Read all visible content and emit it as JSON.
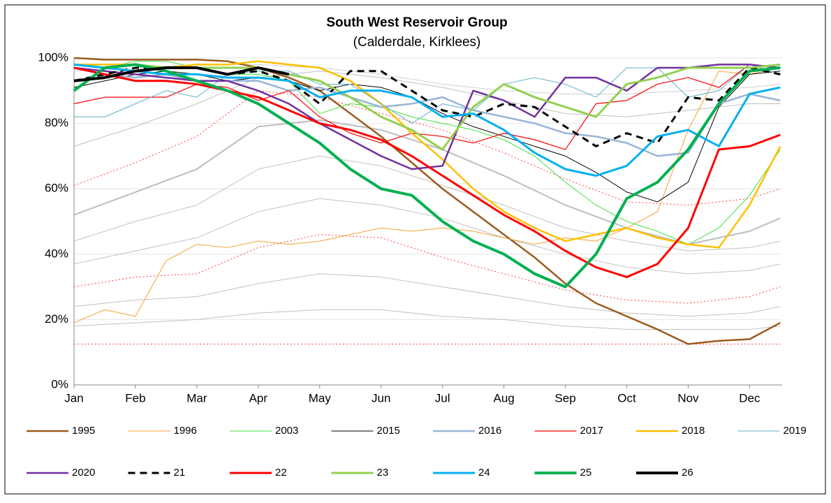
{
  "chart_data": {
    "type": "line",
    "title": "South West Reservoir Group",
    "subtitle": "(Calderdale, Kirklees)",
    "xlim": [
      0,
      11.53
    ],
    "xticks": [
      {
        "value": 0,
        "label": "Jan"
      },
      {
        "value": 1,
        "label": "Feb"
      },
      {
        "value": 2,
        "label": "Mar"
      },
      {
        "value": 3,
        "label": "Apr"
      },
      {
        "value": 4,
        "label": "May"
      },
      {
        "value": 5,
        "label": "Jun"
      },
      {
        "value": 6,
        "label": "Jul"
      },
      {
        "value": 7,
        "label": "Aug"
      },
      {
        "value": 8,
        "label": "Sep"
      },
      {
        "value": 9,
        "label": "Oct"
      },
      {
        "value": 10,
        "label": "Nov"
      },
      {
        "value": 11,
        "label": "Dec"
      }
    ],
    "ylim": [
      0,
      100
    ],
    "yticks": [
      {
        "value": 0,
        "label": "0%"
      },
      {
        "value": 20,
        "label": "20%"
      },
      {
        "value": 40,
        "label": "40%"
      },
      {
        "value": 60,
        "label": "60%"
      },
      {
        "value": 80,
        "label": "80%"
      },
      {
        "value": 100,
        "label": "100%"
      }
    ],
    "grid": true,
    "legend": "bottom",
    "x": [
      0,
      0.5,
      1,
      1.5,
      2,
      2.5,
      3,
      3.5,
      4,
      4.5,
      5,
      5.5,
      6,
      6.5,
      7,
      7.5,
      8,
      8.5,
      9,
      9.5,
      10,
      10.5,
      11,
      11.5
    ],
    "reference_x": [
      0,
      1,
      2,
      3,
      4,
      5,
      6,
      7,
      8,
      9,
      10,
      11,
      11.5
    ],
    "reference_lines": [
      {
        "color": "#d0d0d0",
        "width": 1,
        "values": [
          96,
          97,
          98,
          98,
          97,
          95,
          92,
          90,
          89,
          89,
          90,
          91,
          92
        ]
      },
      {
        "color": "#c0c0c0",
        "width": 1,
        "values": [
          73,
          79,
          86,
          94,
          96,
          94,
          91,
          87,
          83,
          82,
          84,
          86,
          86
        ]
      },
      {
        "color": "#bdbdbd",
        "width": 2,
        "values": [
          52,
          59,
          66,
          79,
          81,
          78,
          72,
          64,
          55,
          48,
          43,
          47,
          51
        ]
      },
      {
        "color": "#c0c0c0",
        "width": 1,
        "values": [
          44,
          50,
          55,
          66,
          70,
          67,
          61,
          55,
          48,
          44,
          41,
          42,
          44
        ]
      },
      {
        "color": "#c0c0c0",
        "width": 1,
        "values": [
          37,
          41,
          45,
          53,
          57,
          55,
          51,
          45,
          40,
          36,
          34,
          35,
          37
        ]
      },
      {
        "color": "#c0c0c0",
        "width": 1,
        "values": [
          24,
          26,
          27,
          31,
          34,
          33,
          30,
          27,
          24,
          22,
          21,
          22,
          24
        ]
      },
      {
        "color": "#c0c0c0",
        "width": 1,
        "values": [
          18,
          19,
          20,
          22,
          23,
          23,
          21,
          20,
          18,
          17,
          17,
          17,
          18
        ]
      },
      {
        "color": "#ff4040",
        "width": 1,
        "dash": true,
        "values": [
          61,
          68,
          76,
          90,
          88,
          83,
          78,
          71,
          63,
          56,
          55,
          57,
          60
        ]
      },
      {
        "color": "#ff4040",
        "width": 1,
        "dash": true,
        "values": [
          30,
          33,
          34,
          42,
          46,
          45,
          39,
          34,
          29,
          26,
          25,
          27,
          30
        ]
      },
      {
        "color": "#ff4040",
        "width": 1,
        "dash": true,
        "values": [
          12.5,
          12.5,
          12.5,
          12.5,
          12.5,
          12.5,
          12.5,
          12.5,
          12.5,
          12.5,
          12.5,
          12.5,
          12.5
        ]
      }
    ],
    "series": [
      {
        "name": "1995",
        "color": "#9c5a1e",
        "width": 2.5,
        "values": [
          100,
          99.5,
          99.5,
          99.5,
          99.5,
          99,
          97,
          94,
          90,
          83,
          76,
          68,
          60,
          53,
          46,
          39,
          31,
          25,
          21,
          17,
          12.5,
          13.5,
          14,
          19
        ]
      },
      {
        "name": "1996",
        "color": "#f5a030",
        "width": 1,
        "values": [
          19,
          23,
          21,
          38,
          43,
          42,
          44,
          43,
          44,
          46,
          48,
          47,
          48,
          47,
          45,
          43,
          45,
          44,
          48,
          53,
          78,
          96,
          95,
          97
        ]
      },
      {
        "name": "2003",
        "color": "#40e040",
        "width": 1,
        "values": [
          98,
          97,
          99,
          99,
          97,
          95,
          95,
          93,
          83,
          86,
          85,
          82,
          80,
          78,
          75,
          70,
          62,
          55,
          50,
          47,
          43,
          48,
          58,
          72
        ]
      },
      {
        "name": "2015",
        "color": "#000000",
        "width": 1,
        "values": [
          91,
          93,
          95,
          96,
          95,
          93,
          94,
          93,
          90,
          92,
          91,
          88,
          83,
          79,
          76,
          73,
          70,
          65,
          59,
          56,
          62,
          85,
          95,
          96
        ]
      },
      {
        "name": "2016",
        "color": "#9ab4d8",
        "width": 2.5,
        "values": [
          97,
          95,
          94,
          95,
          93,
          93,
          93,
          90,
          91,
          88,
          85,
          86,
          88,
          84,
          82,
          80,
          77,
          76,
          74,
          70,
          71,
          86,
          89,
          87
        ]
      },
      {
        "name": "2017",
        "color": "#ff0000",
        "width": 1.2,
        "values": [
          86,
          88,
          88,
          88,
          92,
          91,
          87,
          90,
          82,
          77,
          74,
          77,
          76,
          74,
          77,
          75,
          72,
          86,
          87,
          92,
          94,
          91,
          98,
          97
        ]
      },
      {
        "name": "2018",
        "color": "#ffc000",
        "width": 2.5,
        "values": [
          98,
          98,
          98,
          97,
          98,
          98,
          99,
          98,
          97,
          93,
          86,
          77,
          69,
          60,
          53,
          48,
          44,
          46,
          48,
          45,
          43,
          42,
          55,
          73
        ]
      },
      {
        "name": "2019",
        "color": "#5fb0c8",
        "width": 1,
        "values": [
          82,
          82,
          86,
          90,
          88,
          95,
          96,
          96,
          92,
          92,
          86,
          80,
          86,
          84,
          92,
          94,
          92,
          88,
          97,
          97,
          88,
          90,
          98,
          95
        ]
      },
      {
        "name": "2020",
        "color": "#7030a0",
        "width": 2.5,
        "values": [
          97,
          96,
          95,
          94,
          93,
          93,
          90,
          86,
          80,
          75,
          70,
          66,
          67,
          90,
          87,
          82,
          94,
          94,
          90,
          97,
          97,
          98,
          98,
          97
        ]
      },
      {
        "name": "21",
        "color": "#000000",
        "width": 3,
        "dash": true,
        "values": [
          93,
          95,
          97,
          97,
          97,
          95,
          96,
          93,
          86,
          96,
          96,
          90,
          84,
          82,
          86,
          85,
          79,
          73,
          77,
          74,
          88,
          87,
          97,
          95
        ]
      },
      {
        "name": "22",
        "color": "#ff0000",
        "width": 3,
        "values": [
          97,
          95,
          93,
          93,
          92,
          90,
          88,
          84,
          80,
          78,
          75,
          70,
          64,
          58,
          52,
          47,
          41,
          36,
          33,
          37,
          48,
          72,
          73,
          76.5
        ]
      },
      {
        "name": "23",
        "color": "#92d050",
        "width": 3,
        "values": [
          98,
          97,
          98,
          97,
          97,
          97,
          97,
          95,
          93,
          88,
          82,
          78,
          72,
          85,
          92,
          88,
          85,
          82,
          92,
          94,
          97,
          97,
          97,
          98
        ]
      },
      {
        "name": "24",
        "color": "#00b0f0",
        "width": 3,
        "values": [
          98,
          97,
          96,
          95,
          95,
          94,
          94,
          93,
          88,
          90,
          90,
          88,
          82,
          83,
          78,
          71,
          66,
          64,
          67,
          76,
          78,
          73,
          89,
          91
        ]
      },
      {
        "name": "25",
        "color": "#00b050",
        "width": 4,
        "values": [
          90,
          97,
          98,
          96,
          93,
          90,
          86,
          80,
          74,
          66,
          60,
          58,
          50,
          44,
          40,
          34,
          30,
          40,
          57,
          62,
          72,
          86,
          96,
          97
        ]
      },
      {
        "name": "26",
        "color": "#000000",
        "width": 4,
        "values": [
          93,
          94,
          96,
          97,
          97,
          95,
          97,
          95,
          null,
          null,
          null,
          null,
          null,
          null,
          null,
          null,
          null,
          null,
          null,
          null,
          null,
          null,
          null,
          null
        ]
      }
    ]
  }
}
